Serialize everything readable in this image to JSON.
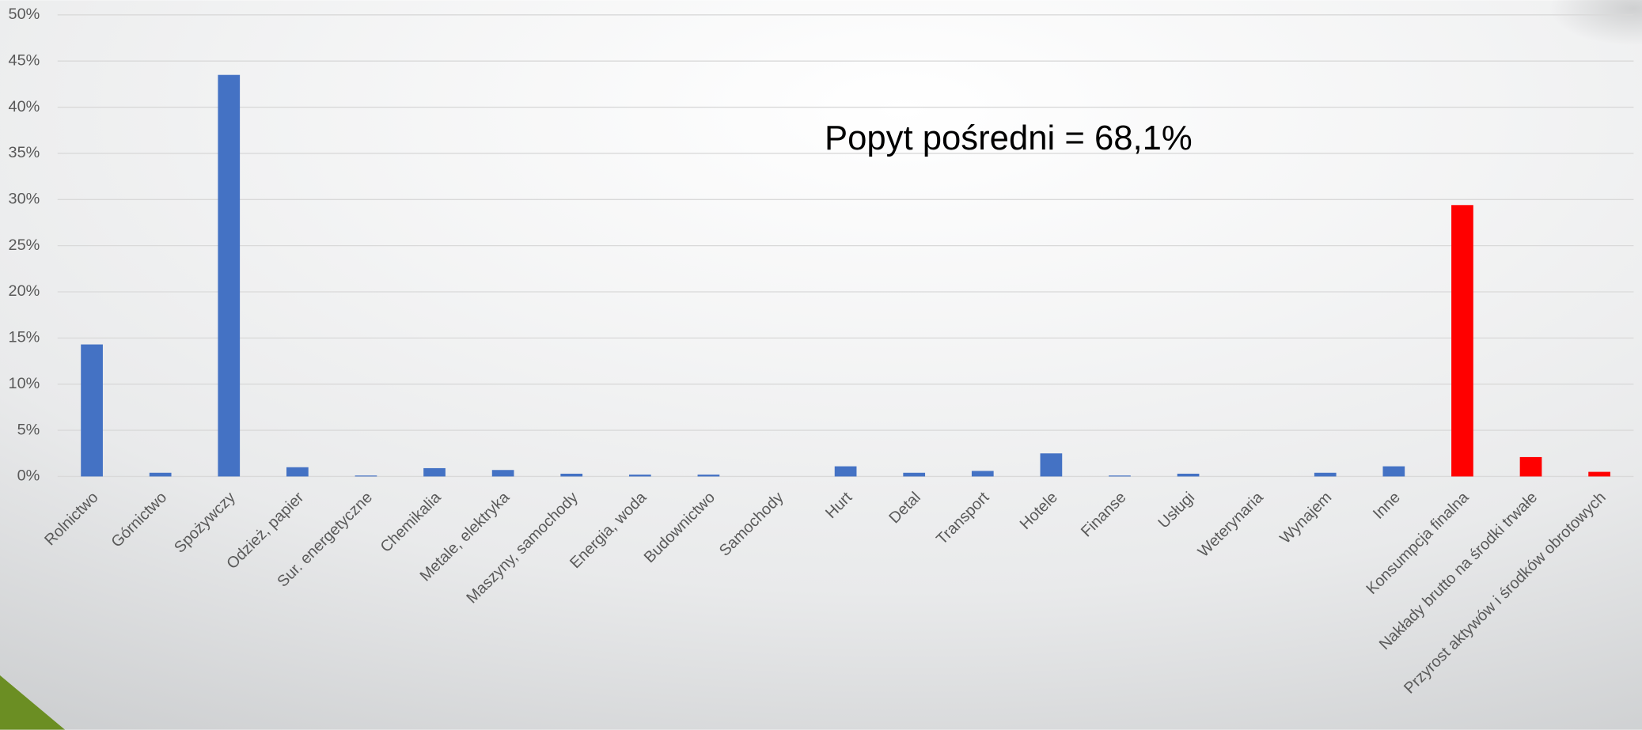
{
  "chart_data": {
    "type": "bar",
    "annotation": "Popyt pośredni = 68,1%",
    "categories": [
      "Rolnictwo",
      "Górnictwo",
      "Spożywczy",
      "Odzież, papier",
      "Sur. energetyczne",
      "Chemikalia",
      "Metale, elektryka",
      "Maszyny, samochody",
      "Energia, woda",
      "Budownictwo",
      "Samochody",
      "Hurt",
      "Detal",
      "Transport",
      "Hotele",
      "Finanse",
      "Usługi",
      "Weterynaria",
      "Wynajem",
      "Inne",
      "Konsumpcja finalna",
      "Nakłady brutto na środki trwałe",
      "Przyrost aktywów i środków obrotowych"
    ],
    "values": [
      14.3,
      0.4,
      43.5,
      1.0,
      0.1,
      0.9,
      0.7,
      0.3,
      0.2,
      0.2,
      0.0,
      1.1,
      0.4,
      0.6,
      2.5,
      0.1,
      0.3,
      0.0,
      0.4,
      1.1,
      29.4,
      2.1,
      0.5
    ],
    "colors": [
      "#4472c4",
      "#4472c4",
      "#4472c4",
      "#4472c4",
      "#4472c4",
      "#4472c4",
      "#4472c4",
      "#4472c4",
      "#4472c4",
      "#4472c4",
      "#4472c4",
      "#4472c4",
      "#4472c4",
      "#4472c4",
      "#4472c4",
      "#4472c4",
      "#4472c4",
      "#4472c4",
      "#4472c4",
      "#4472c4",
      "#ff0000",
      "#ff0000",
      "#ff0000"
    ],
    "ylim": [
      0,
      50
    ],
    "yticks": [
      {
        "value": 0,
        "label": "0%"
      },
      {
        "value": 5,
        "label": "5%"
      },
      {
        "value": 10,
        "label": "10%"
      },
      {
        "value": 15,
        "label": "15%"
      },
      {
        "value": 20,
        "label": "20%"
      },
      {
        "value": 25,
        "label": "25%"
      },
      {
        "value": 30,
        "label": "30%"
      },
      {
        "value": 35,
        "label": "35%"
      },
      {
        "value": 40,
        "label": "40%"
      },
      {
        "value": 45,
        "label": "45%"
      },
      {
        "value": 50,
        "label": "50%"
      }
    ],
    "grid": true
  }
}
